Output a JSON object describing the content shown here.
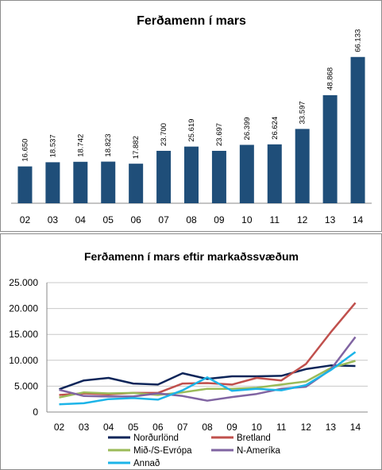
{
  "chart_data": [
    {
      "type": "bar",
      "title": "Ferðamenn í mars",
      "categories": [
        "02",
        "03",
        "04",
        "05",
        "06",
        "07",
        "08",
        "09",
        "10",
        "11",
        "12",
        "13",
        "14"
      ],
      "values": [
        16650,
        18537,
        18742,
        18823,
        17882,
        23700,
        25619,
        23697,
        26399,
        26624,
        33597,
        48868,
        66133
      ],
      "data_labels": [
        "16.650",
        "18.537",
        "18.742",
        "18.823",
        "17.882",
        "23.700",
        "25.619",
        "23.697",
        "26.399",
        "26.624",
        "33.597",
        "48.868",
        "66.133"
      ],
      "ylim": [
        0,
        70000
      ],
      "grid": false,
      "legend": "none",
      "colors": {
        "bar": "#1f4e79"
      }
    },
    {
      "type": "line",
      "title": "Ferðamenn í mars eftir markaðssvæðum",
      "categories": [
        "02",
        "03",
        "04",
        "05",
        "06",
        "07",
        "08",
        "09",
        "10",
        "11",
        "12",
        "13",
        "14"
      ],
      "ylim": [
        0,
        25000
      ],
      "yticks": [
        0,
        5000,
        10000,
        15000,
        20000,
        25000
      ],
      "ytick_labels": [
        "0",
        "5.000",
        "10.000",
        "15.000",
        "20.000",
        "25.000"
      ],
      "grid": true,
      "legend": "bottom",
      "series": [
        {
          "name": "Norðurlönd",
          "color": "#0d2559",
          "values": [
            4400,
            6100,
            6600,
            5500,
            5300,
            7500,
            6400,
            6900,
            6900,
            7000,
            8300,
            9000,
            8900
          ]
        },
        {
          "name": "Bretland",
          "color": "#c0504d",
          "values": [
            3300,
            3600,
            3400,
            3700,
            3700,
            5500,
            5600,
            5300,
            6600,
            6100,
            9300,
            15400,
            21100
          ]
        },
        {
          "name": "Mið-/S-Evrópa",
          "color": "#9bbb59",
          "values": [
            2800,
            3800,
            3600,
            3700,
            3300,
            3800,
            4500,
            4500,
            4700,
            5300,
            5900,
            8500,
            9900
          ]
        },
        {
          "name": "N-Ameríka",
          "color": "#8064a2",
          "values": [
            4300,
            3100,
            3000,
            3000,
            3600,
            3100,
            2200,
            2900,
            3500,
            4500,
            4900,
            8200,
            14500
          ]
        },
        {
          "name": "Annað",
          "color": "#1cb4e8",
          "values": [
            1500,
            1700,
            2500,
            2700,
            2400,
            4200,
            6700,
            4100,
            4500,
            4200,
            5200,
            8100,
            11600
          ]
        }
      ]
    }
  ]
}
